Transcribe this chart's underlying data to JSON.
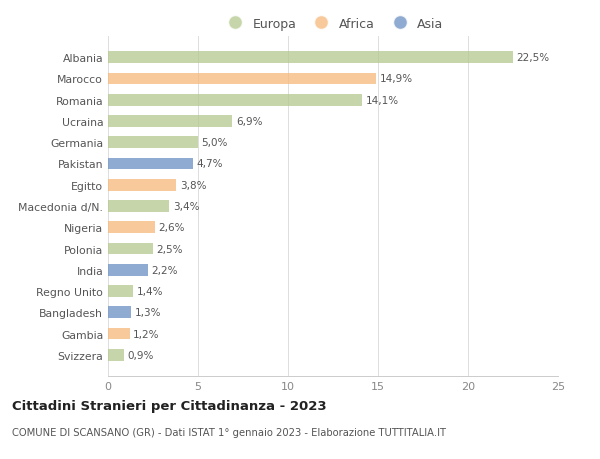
{
  "countries": [
    "Albania",
    "Marocco",
    "Romania",
    "Ucraina",
    "Germania",
    "Pakistan",
    "Egitto",
    "Macedonia d/N.",
    "Nigeria",
    "Polonia",
    "India",
    "Regno Unito",
    "Bangladesh",
    "Gambia",
    "Svizzera"
  ],
  "values": [
    22.5,
    14.9,
    14.1,
    6.9,
    5.0,
    4.7,
    3.8,
    3.4,
    2.6,
    2.5,
    2.2,
    1.4,
    1.3,
    1.2,
    0.9
  ],
  "labels": [
    "22,5%",
    "14,9%",
    "14,1%",
    "6,9%",
    "5,0%",
    "4,7%",
    "3,8%",
    "3,4%",
    "2,6%",
    "2,5%",
    "2,2%",
    "1,4%",
    "1,3%",
    "1,2%",
    "0,9%"
  ],
  "continents": [
    "Europa",
    "Africa",
    "Europa",
    "Europa",
    "Europa",
    "Asia",
    "Africa",
    "Europa",
    "Africa",
    "Europa",
    "Asia",
    "Europa",
    "Asia",
    "Africa",
    "Europa"
  ],
  "colors": {
    "Europa": "#b5c98e",
    "Africa": "#f5b87a",
    "Asia": "#6b8fc4"
  },
  "title": "Cittadini Stranieri per Cittadinanza - 2023",
  "subtitle": "COMUNE DI SCANSANO (GR) - Dati ISTAT 1° gennaio 2023 - Elaborazione TUTTITALIA.IT",
  "xlim": [
    0,
    25
  ],
  "xticks": [
    0,
    5,
    10,
    15,
    20,
    25
  ],
  "background_color": "#ffffff",
  "bar_alpha": 0.75
}
